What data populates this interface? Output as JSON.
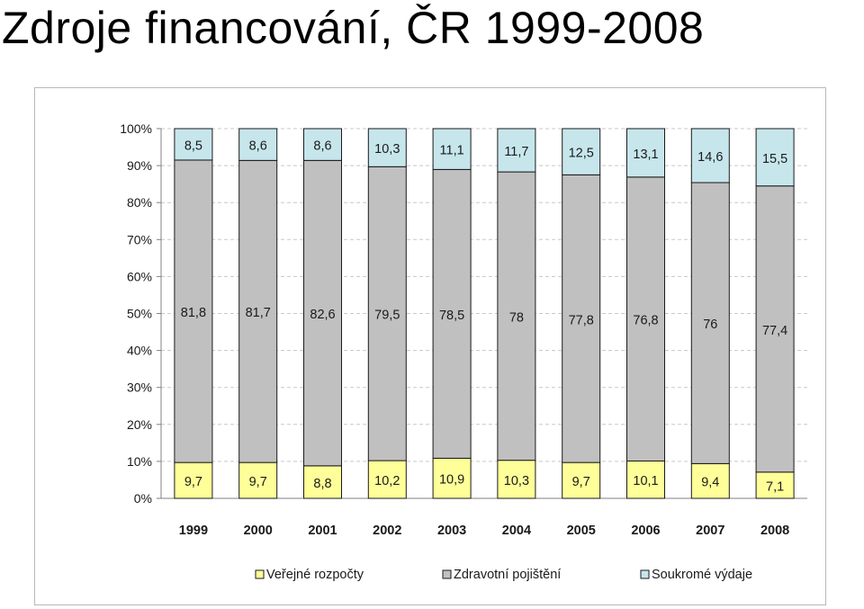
{
  "title": "Zdroje financování, ČR 1999-2008",
  "chart_data": {
    "type": "bar",
    "stacked": true,
    "percent_axis": true,
    "categories": [
      "1999",
      "2000",
      "2001",
      "2002",
      "2003",
      "2004",
      "2005",
      "2006",
      "2007",
      "2008"
    ],
    "series": [
      {
        "name": "Veřejné rozpočty",
        "color": "#ffff99",
        "values": [
          9.7,
          9.7,
          8.8,
          10.2,
          10.9,
          10.3,
          9.7,
          10.1,
          9.4,
          7.1
        ],
        "labels": [
          "9,7",
          "9,7",
          "8,8",
          "10,2",
          "10,9",
          "10,3",
          "9,7",
          "10,1",
          "9,4",
          "7,1"
        ]
      },
      {
        "name": "Zdravotní pojištění",
        "color": "#c0c0c0",
        "values": [
          81.8,
          81.7,
          82.6,
          79.5,
          78.5,
          78,
          77.8,
          76.8,
          76,
          77.4
        ],
        "labels": [
          "81,8",
          "81,7",
          "82,6",
          "79,5",
          "78,5",
          "78",
          "77,8",
          "76,8",
          "76",
          "77,4"
        ]
      },
      {
        "name": "Soukromé výdaje",
        "color": "#c6e6ec",
        "values": [
          8.5,
          8.6,
          8.6,
          10.3,
          11.1,
          11.7,
          12.5,
          13.1,
          14.6,
          15.5
        ],
        "labels": [
          "8,5",
          "8,6",
          "8,6",
          "10,3",
          "11,1",
          "11,7",
          "12,5",
          "13,1",
          "14,6",
          "15,5"
        ]
      }
    ],
    "y_ticks": [
      "0%",
      "10%",
      "20%",
      "30%",
      "40%",
      "50%",
      "60%",
      "70%",
      "80%",
      "90%",
      "100%"
    ],
    "ylim": [
      0,
      100
    ],
    "xlabel": "",
    "ylabel": "",
    "grid": true,
    "legend_position": "bottom"
  }
}
